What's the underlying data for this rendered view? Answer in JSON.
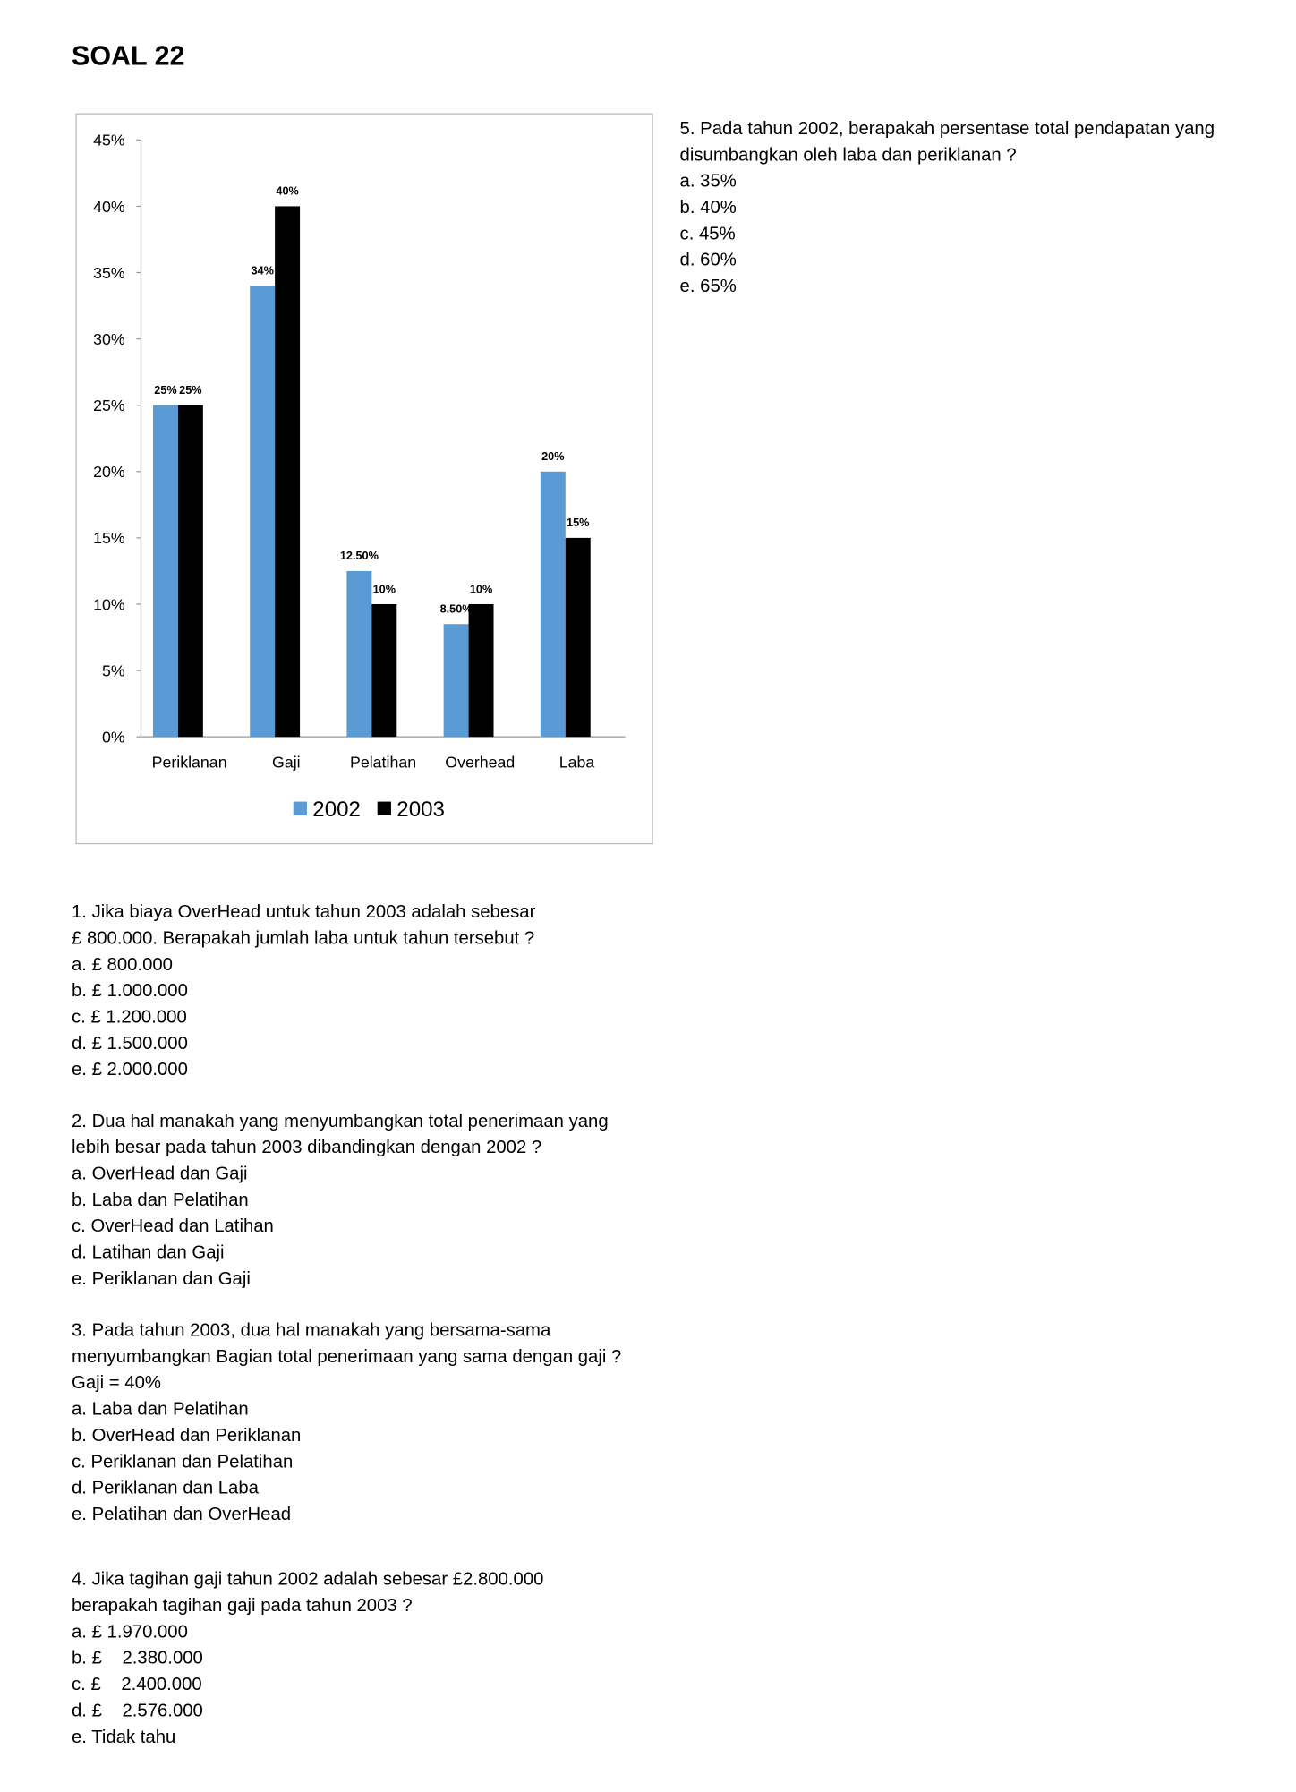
{
  "header": {
    "title": "SOAL 22"
  },
  "chart_data": {
    "type": "bar",
    "categories": [
      "Periklanan",
      "Gaji",
      "Pelatihan",
      "Overhead",
      "Laba"
    ],
    "series": [
      {
        "name": "2002",
        "color": "#5b9bd5",
        "values": [
          25,
          34,
          12.5,
          8.5,
          20
        ],
        "value_labels": [
          "25%",
          "34%",
          "12.50%",
          "8.50%",
          "20%"
        ]
      },
      {
        "name": "2003",
        "color": "#000000",
        "values": [
          25,
          40,
          10,
          10,
          15
        ],
        "value_labels": [
          "25%",
          "40%",
          "10%",
          "10%",
          "15%"
        ]
      }
    ],
    "ylim": [
      0,
      45
    ],
    "yticks": [
      {
        "value": 0,
        "label": "0%"
      },
      {
        "value": 5,
        "label": "5%"
      },
      {
        "value": 10,
        "label": "10%"
      },
      {
        "value": 15,
        "label": "15%"
      },
      {
        "value": 20,
        "label": "20%"
      },
      {
        "value": 25,
        "label": "25%"
      },
      {
        "value": 30,
        "label": "30%"
      },
      {
        "value": 35,
        "label": "35%"
      },
      {
        "value": 40,
        "label": "40%"
      },
      {
        "value": 45,
        "label": "45%"
      }
    ],
    "legend": "bottom"
  },
  "questions": [
    {
      "lines": [
        "5. Pada tahun 2002, berapakah persentase total pendapatan yang",
        "disumbangkan oleh laba dan periklanan ?",
        "a. 35%",
        "b. 40%",
        "c. 45%",
        "d. 60%",
        "e. 65%"
      ]
    },
    {
      "lines": [
        "1. Jika biaya OverHead untuk tahun 2003 adalah sebesar",
        "£ 800.000. Berapakah jumlah laba untuk tahun tersebut ?",
        "a. £ 800.000",
        "b. £ 1.000.000",
        "c. £ 1.200.000",
        "d. £ 1.500.000",
        "e. £ 2.000.000"
      ]
    },
    {
      "lines": [
        "2. Dua hal manakah yang menyumbangkan total penerimaan yang",
        "lebih besar pada tahun 2003 dibandingkan dengan 2002 ?",
        "a. OverHead dan Gaji",
        "b. Laba dan Pelatihan",
        "c. OverHead dan Latihan",
        "d. Latihan dan Gaji",
        "e. Periklanan dan Gaji"
      ]
    },
    {
      "lines": [
        "3. Pada tahun 2003, dua hal manakah yang bersama-sama",
        "menyumbangkan Bagian total penerimaan yang sama dengan gaji ?",
        "Gaji = 40%",
        "a. Laba dan Pelatihan",
        "b. OverHead dan Periklanan",
        "c. Periklanan dan Pelatihan",
        "d. Periklanan dan Laba",
        "e. Pelatihan dan OverHead"
      ]
    },
    {
      "lines": [
        "4. Jika tagihan gaji tahun 2002 adalah sebesar £2.800.000",
        "berapakah tagihan gaji pada tahun 2003 ?",
        "a. £ 1.970.000",
        "b. £    2.380.000",
        "c. £    2.400.000",
        "d. £    2.576.000",
        "e. Tidak tahu"
      ]
    }
  ]
}
